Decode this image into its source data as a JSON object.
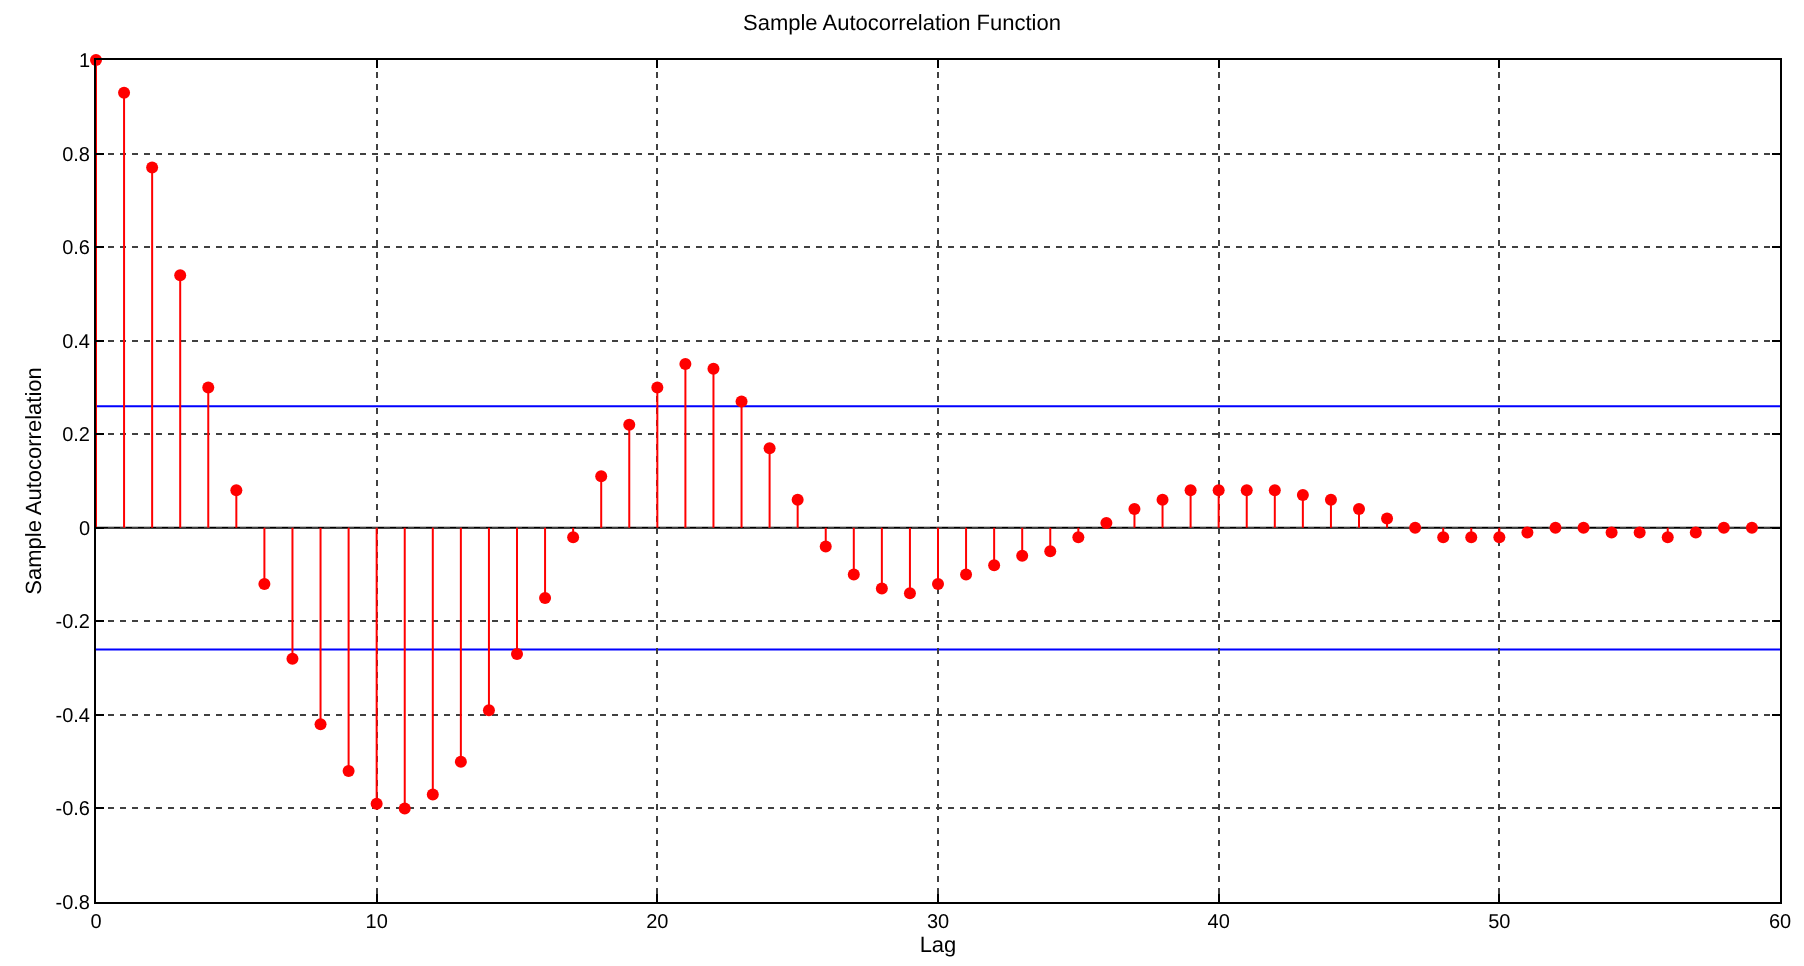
{
  "chart_data": {
    "type": "lollipop",
    "title": "Sample Autocorrelation Function",
    "xlabel": "Lag",
    "ylabel": "Sample Autocorrelation",
    "x": [
      0,
      1,
      2,
      3,
      4,
      5,
      6,
      7,
      8,
      9,
      10,
      11,
      12,
      13,
      14,
      15,
      16,
      17,
      18,
      19,
      20,
      21,
      22,
      23,
      24,
      25,
      26,
      27,
      28,
      29,
      30,
      31,
      32,
      33,
      34,
      35,
      36,
      37,
      38,
      39,
      40,
      41,
      42,
      43,
      44,
      45,
      46,
      47,
      48,
      49,
      50,
      51,
      52,
      53,
      54,
      55,
      56,
      57,
      58,
      59
    ],
    "series": [
      {
        "color": "#ff0000",
        "values": [
          1,
          0.93,
          0.77,
          0.54,
          0.3,
          0.08,
          -0.12,
          -0.28,
          -0.42,
          -0.52,
          -0.59,
          -0.6,
          -0.57,
          -0.5,
          -0.39,
          -0.27,
          -0.15,
          -0.02,
          0.11,
          0.22,
          0.3,
          0.35,
          0.34,
          0.27,
          0.17,
          0.06,
          -0.04,
          -0.1,
          -0.13,
          -0.14,
          -0.12,
          -0.1,
          -0.08,
          -0.06,
          -0.05,
          -0.02,
          0.01,
          0.04,
          0.06,
          0.08,
          0.08,
          0.08,
          0.08,
          0.07,
          0.06,
          0.04,
          0.02,
          0,
          -0.02,
          -0.02,
          -0.02,
          -0.01,
          0,
          0,
          -0.01,
          -0.01,
          -0.02,
          -0.01,
          0,
          0
        ]
      }
    ],
    "xlim": [
      0,
      60
    ],
    "xticks": [
      0,
      10,
      20,
      30,
      40,
      50,
      60
    ],
    "ylim": [
      -0.8,
      1
    ],
    "yticks": [
      -0.8,
      -0.6,
      -0.4,
      -0.2,
      0,
      0.2,
      0.4,
      0.6,
      0.8,
      1
    ],
    "ref_lines": [
      {
        "axis": "y",
        "value": 0.26,
        "color": "#0000ff"
      },
      {
        "axis": "y",
        "value": -0.26,
        "color": "#0000ff"
      },
      {
        "axis": "y",
        "value": 0,
        "color": "#000000"
      }
    ],
    "grid": true,
    "marker": "circle"
  }
}
